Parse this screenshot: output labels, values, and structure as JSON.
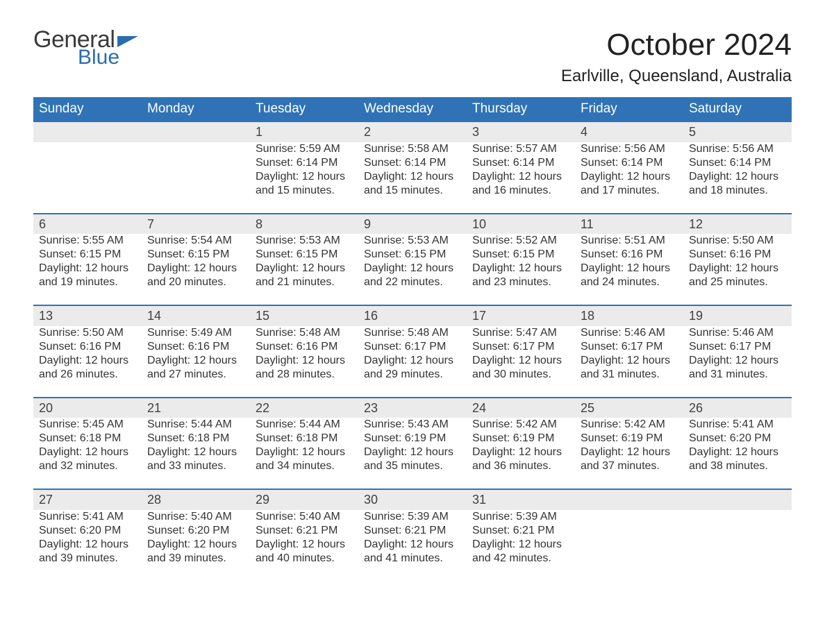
{
  "brand": {
    "word1": "General",
    "word2": "Blue",
    "text_color": "#3a3a3a",
    "accent_color": "#2a6cb0"
  },
  "title": "October 2024",
  "location": "Earlville, Queensland, Australia",
  "colors": {
    "header_bg": "#2f73b6",
    "header_text": "#ffffff",
    "daynum_bg": "#ebebeb",
    "daynum_border": "#2f73b6",
    "body_text": "#333333",
    "page_bg": "#ffffff"
  },
  "fonts": {
    "title_size_pt": 33,
    "location_size_pt": 18,
    "header_size_pt": 14,
    "body_size_pt": 12
  },
  "weekdays": [
    "Sunday",
    "Monday",
    "Tuesday",
    "Wednesday",
    "Thursday",
    "Friday",
    "Saturday"
  ],
  "weeks": [
    [
      null,
      null,
      {
        "day": "1",
        "sunrise": "Sunrise: 5:59 AM",
        "sunset": "Sunset: 6:14 PM",
        "daylight1": "Daylight: 12 hours",
        "daylight2": "and 15 minutes."
      },
      {
        "day": "2",
        "sunrise": "Sunrise: 5:58 AM",
        "sunset": "Sunset: 6:14 PM",
        "daylight1": "Daylight: 12 hours",
        "daylight2": "and 15 minutes."
      },
      {
        "day": "3",
        "sunrise": "Sunrise: 5:57 AM",
        "sunset": "Sunset: 6:14 PM",
        "daylight1": "Daylight: 12 hours",
        "daylight2": "and 16 minutes."
      },
      {
        "day": "4",
        "sunrise": "Sunrise: 5:56 AM",
        "sunset": "Sunset: 6:14 PM",
        "daylight1": "Daylight: 12 hours",
        "daylight2": "and 17 minutes."
      },
      {
        "day": "5",
        "sunrise": "Sunrise: 5:56 AM",
        "sunset": "Sunset: 6:14 PM",
        "daylight1": "Daylight: 12 hours",
        "daylight2": "and 18 minutes."
      }
    ],
    [
      {
        "day": "6",
        "sunrise": "Sunrise: 5:55 AM",
        "sunset": "Sunset: 6:15 PM",
        "daylight1": "Daylight: 12 hours",
        "daylight2": "and 19 minutes."
      },
      {
        "day": "7",
        "sunrise": "Sunrise: 5:54 AM",
        "sunset": "Sunset: 6:15 PM",
        "daylight1": "Daylight: 12 hours",
        "daylight2": "and 20 minutes."
      },
      {
        "day": "8",
        "sunrise": "Sunrise: 5:53 AM",
        "sunset": "Sunset: 6:15 PM",
        "daylight1": "Daylight: 12 hours",
        "daylight2": "and 21 minutes."
      },
      {
        "day": "9",
        "sunrise": "Sunrise: 5:53 AM",
        "sunset": "Sunset: 6:15 PM",
        "daylight1": "Daylight: 12 hours",
        "daylight2": "and 22 minutes."
      },
      {
        "day": "10",
        "sunrise": "Sunrise: 5:52 AM",
        "sunset": "Sunset: 6:15 PM",
        "daylight1": "Daylight: 12 hours",
        "daylight2": "and 23 minutes."
      },
      {
        "day": "11",
        "sunrise": "Sunrise: 5:51 AM",
        "sunset": "Sunset: 6:16 PM",
        "daylight1": "Daylight: 12 hours",
        "daylight2": "and 24 minutes."
      },
      {
        "day": "12",
        "sunrise": "Sunrise: 5:50 AM",
        "sunset": "Sunset: 6:16 PM",
        "daylight1": "Daylight: 12 hours",
        "daylight2": "and 25 minutes."
      }
    ],
    [
      {
        "day": "13",
        "sunrise": "Sunrise: 5:50 AM",
        "sunset": "Sunset: 6:16 PM",
        "daylight1": "Daylight: 12 hours",
        "daylight2": "and 26 minutes."
      },
      {
        "day": "14",
        "sunrise": "Sunrise: 5:49 AM",
        "sunset": "Sunset: 6:16 PM",
        "daylight1": "Daylight: 12 hours",
        "daylight2": "and 27 minutes."
      },
      {
        "day": "15",
        "sunrise": "Sunrise: 5:48 AM",
        "sunset": "Sunset: 6:16 PM",
        "daylight1": "Daylight: 12 hours",
        "daylight2": "and 28 minutes."
      },
      {
        "day": "16",
        "sunrise": "Sunrise: 5:48 AM",
        "sunset": "Sunset: 6:17 PM",
        "daylight1": "Daylight: 12 hours",
        "daylight2": "and 29 minutes."
      },
      {
        "day": "17",
        "sunrise": "Sunrise: 5:47 AM",
        "sunset": "Sunset: 6:17 PM",
        "daylight1": "Daylight: 12 hours",
        "daylight2": "and 30 minutes."
      },
      {
        "day": "18",
        "sunrise": "Sunrise: 5:46 AM",
        "sunset": "Sunset: 6:17 PM",
        "daylight1": "Daylight: 12 hours",
        "daylight2": "and 31 minutes."
      },
      {
        "day": "19",
        "sunrise": "Sunrise: 5:46 AM",
        "sunset": "Sunset: 6:17 PM",
        "daylight1": "Daylight: 12 hours",
        "daylight2": "and 31 minutes."
      }
    ],
    [
      {
        "day": "20",
        "sunrise": "Sunrise: 5:45 AM",
        "sunset": "Sunset: 6:18 PM",
        "daylight1": "Daylight: 12 hours",
        "daylight2": "and 32 minutes."
      },
      {
        "day": "21",
        "sunrise": "Sunrise: 5:44 AM",
        "sunset": "Sunset: 6:18 PM",
        "daylight1": "Daylight: 12 hours",
        "daylight2": "and 33 minutes."
      },
      {
        "day": "22",
        "sunrise": "Sunrise: 5:44 AM",
        "sunset": "Sunset: 6:18 PM",
        "daylight1": "Daylight: 12 hours",
        "daylight2": "and 34 minutes."
      },
      {
        "day": "23",
        "sunrise": "Sunrise: 5:43 AM",
        "sunset": "Sunset: 6:19 PM",
        "daylight1": "Daylight: 12 hours",
        "daylight2": "and 35 minutes."
      },
      {
        "day": "24",
        "sunrise": "Sunrise: 5:42 AM",
        "sunset": "Sunset: 6:19 PM",
        "daylight1": "Daylight: 12 hours",
        "daylight2": "and 36 minutes."
      },
      {
        "day": "25",
        "sunrise": "Sunrise: 5:42 AM",
        "sunset": "Sunset: 6:19 PM",
        "daylight1": "Daylight: 12 hours",
        "daylight2": "and 37 minutes."
      },
      {
        "day": "26",
        "sunrise": "Sunrise: 5:41 AM",
        "sunset": "Sunset: 6:20 PM",
        "daylight1": "Daylight: 12 hours",
        "daylight2": "and 38 minutes."
      }
    ],
    [
      {
        "day": "27",
        "sunrise": "Sunrise: 5:41 AM",
        "sunset": "Sunset: 6:20 PM",
        "daylight1": "Daylight: 12 hours",
        "daylight2": "and 39 minutes."
      },
      {
        "day": "28",
        "sunrise": "Sunrise: 5:40 AM",
        "sunset": "Sunset: 6:20 PM",
        "daylight1": "Daylight: 12 hours",
        "daylight2": "and 39 minutes."
      },
      {
        "day": "29",
        "sunrise": "Sunrise: 5:40 AM",
        "sunset": "Sunset: 6:21 PM",
        "daylight1": "Daylight: 12 hours",
        "daylight2": "and 40 minutes."
      },
      {
        "day": "30",
        "sunrise": "Sunrise: 5:39 AM",
        "sunset": "Sunset: 6:21 PM",
        "daylight1": "Daylight: 12 hours",
        "daylight2": "and 41 minutes."
      },
      {
        "day": "31",
        "sunrise": "Sunrise: 5:39 AM",
        "sunset": "Sunset: 6:21 PM",
        "daylight1": "Daylight: 12 hours",
        "daylight2": "and 42 minutes."
      },
      null,
      null
    ]
  ]
}
